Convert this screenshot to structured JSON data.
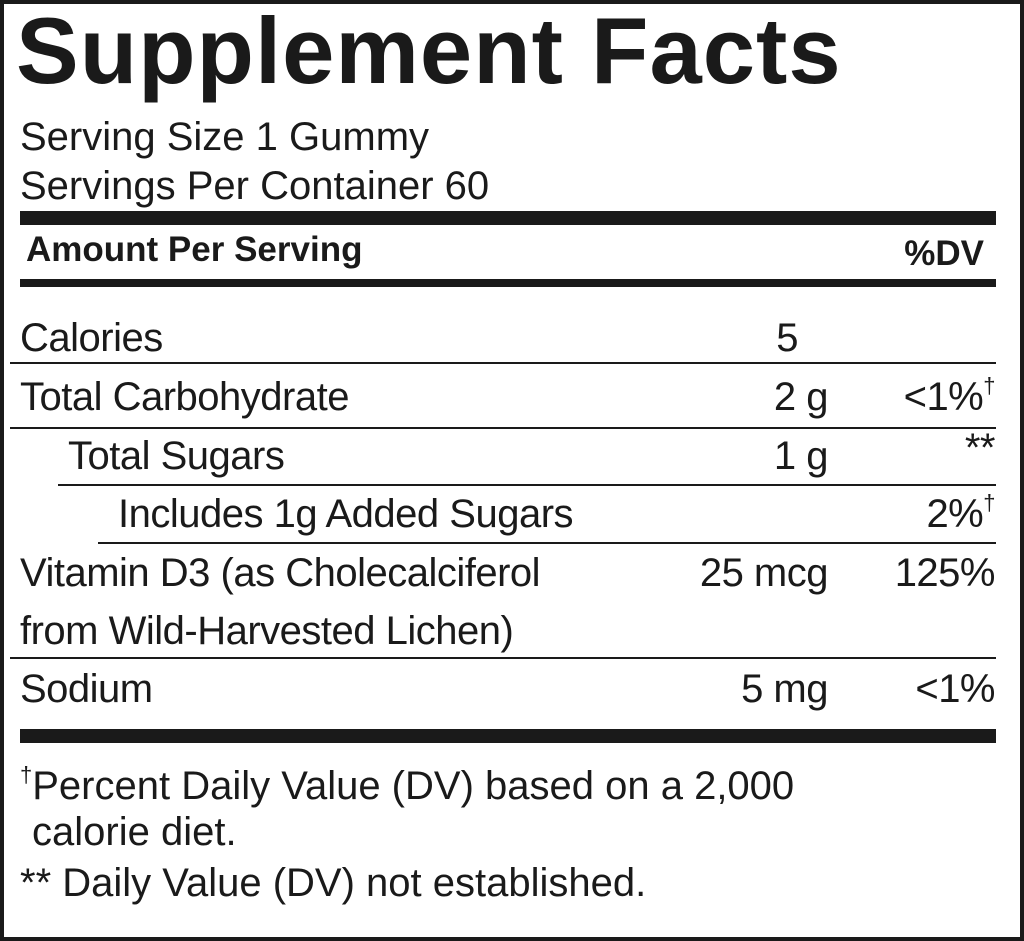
{
  "title": "Supplement Facts",
  "serving_size": "Serving Size 1 Gummy",
  "servings_per_container": "Servings Per Container 60",
  "header": {
    "amount": "Amount Per Serving",
    "dv": "%DV"
  },
  "rows": [
    {
      "name": "Calories",
      "amount": "5",
      "dv": "",
      "dv_mark": ""
    },
    {
      "name": "Total Carbohydrate",
      "amount": "2 g",
      "dv": "<1%",
      "dv_mark": "†"
    },
    {
      "name": "Total Sugars",
      "amount": "1 g",
      "dv": "**",
      "dv_mark": ""
    },
    {
      "name": "Includes 1g Added Sugars",
      "amount": "",
      "dv": "2%",
      "dv_mark": "†"
    },
    {
      "name": "Vitamin D3 (as Cholecalciferol",
      "name_line2": "from Wild-Harvested Lichen)",
      "amount": "25 mcg",
      "dv": "125%",
      "dv_mark": ""
    },
    {
      "name": "Sodium",
      "amount": "5 mg",
      "dv": "<1%",
      "dv_mark": ""
    }
  ],
  "footnotes": {
    "dagger": "†",
    "dv_note_line1": "Percent Daily Value (DV) based on a 2,000",
    "dv_note_line2": "calorie diet.",
    "not_established": "** Daily Value (DV) not established."
  }
}
